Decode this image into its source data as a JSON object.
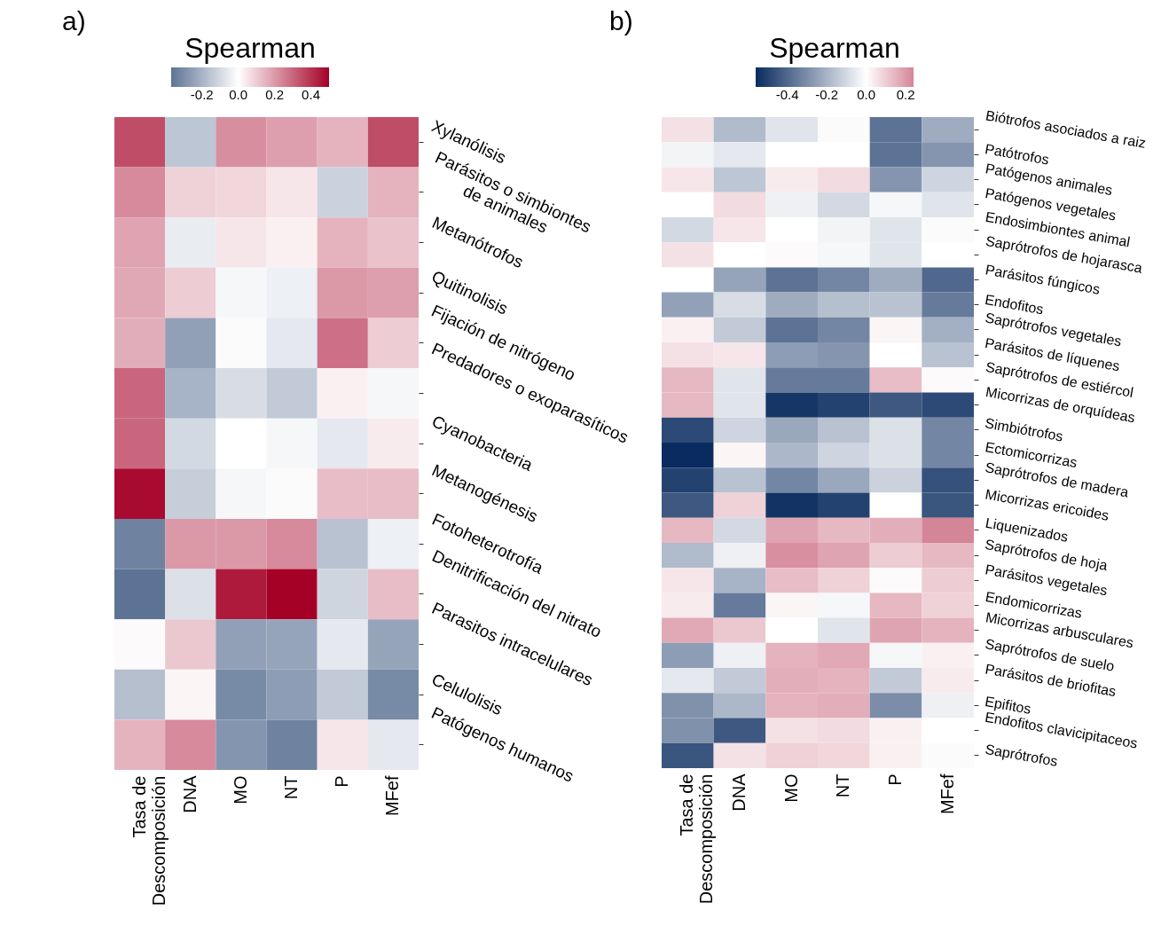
{
  "chart_data": [
    {
      "type": "heatmap",
      "annotations": [
        "a)"
      ],
      "legend_title": "Spearman",
      "clim": [
        0.5,
        -0.37
      ],
      "cticks": [
        0.4,
        0.2,
        {
          "value": 0,
          "label": "0.0"
        },
        -0.2
      ],
      "categories": [
        "Tasa de Descomposición",
        "DNA",
        "MO",
        "NT",
        "P",
        "MFef"
      ],
      "y_categories": [
        "Xylanólisis",
        "Parásitos o simbiontes de animales",
        "Metanótrofos",
        "Quitinolisis",
        "Fijación de nitrógeno",
        "Predadores o exoparasíticos",
        "Cyanobacteria",
        "Metanogénesis",
        "Fotoheterotrofía",
        "Denitrificación del nitrato",
        "Parasitos intracelulares",
        "Celulolisis",
        "Patógenos humanos"
      ],
      "cells": [
        [
          0.35,
          -0.15,
          0.22,
          0.19,
          0.15,
          0.35
        ],
        [
          0.23,
          0.09,
          0.08,
          0.05,
          -0.12,
          0.15
        ],
        [
          0.18,
          -0.05,
          0.05,
          0.03,
          0.15,
          0.12
        ],
        [
          0.17,
          0.1,
          -0.02,
          -0.04,
          0.2,
          0.19
        ],
        [
          0.16,
          -0.25,
          -0.01,
          -0.06,
          0.28,
          0.1
        ],
        [
          0.3,
          -0.2,
          -0.09,
          -0.14,
          0.03,
          -0.02
        ],
        [
          0.3,
          -0.1,
          0,
          -0.02,
          -0.06,
          0.04
        ],
        [
          0.48,
          -0.13,
          -0.02,
          -0.01,
          0.13,
          0.13
        ],
        [
          -0.33,
          0.2,
          0.2,
          0.23,
          -0.16,
          -0.04
        ],
        [
          -0.37,
          -0.08,
          0.45,
          0.5,
          -0.11,
          0.13
        ],
        [
          0.01,
          0.11,
          -0.25,
          -0.24,
          -0.06,
          -0.24
        ],
        [
          -0.17,
          0.02,
          -0.31,
          -0.26,
          -0.14,
          -0.31
        ],
        [
          0.15,
          0.23,
          -0.28,
          -0.33,
          0.05,
          -0.06
        ]
      ]
    },
    {
      "type": "heatmap",
      "annotations": [
        "b)"
      ],
      "legend_title": "Spearman",
      "clim": [
        0.24,
        -0.56
      ],
      "cticks": [
        0.2,
        {
          "value": 0,
          "label": "0.0"
        },
        -0.2,
        -0.4
      ],
      "categories": [
        "Tasa de Descomposición",
        "DNA",
        "MO",
        "NT",
        "P",
        "MFef"
      ],
      "y_categories": [
        "Biótrofos asociados a raiz",
        "Patótrofos",
        "Patógenos animales",
        "Patógenos vegetales",
        "Endosimbiontes animal",
        "Saprótrofos de hojarasca",
        "Parásitos fúngicos",
        "Endofitos",
        "Saprótrofos vegetales",
        "Parásitos de líquenes",
        "Saprótrofos de estiércol",
        "Micorrizas de orquídeas",
        "Simbiótrofos",
        "Ectomicorrizas",
        "Saprótrofos de madera",
        "Micorrizas ericoides",
        "Liquenizados",
        "Saprótrofos de hoja",
        "Parásitos vegetales",
        "Endomicorrizas",
        "Micorrizas arbusculares",
        "Saprótrofos de suelo",
        "Parásitos de briofitas",
        "Epifitos",
        "Endofitos clavicipitaceos",
        "Saprótrofos"
      ],
      "cells": [
        [
          0.06,
          -0.18,
          -0.07,
          -0.01,
          -0.37,
          -0.22
        ],
        [
          -0.03,
          -0.06,
          0,
          0,
          -0.37,
          -0.28
        ],
        [
          0.05,
          -0.15,
          0.04,
          0.07,
          -0.28,
          -0.11
        ],
        [
          0,
          0.07,
          -0.04,
          -0.1,
          -0.02,
          -0.07
        ],
        [
          -0.1,
          0.05,
          0,
          -0.03,
          -0.07,
          -0.01
        ],
        [
          0.06,
          0,
          0.01,
          -0.02,
          -0.07,
          0
        ],
        [
          0,
          -0.24,
          -0.37,
          -0.32,
          -0.22,
          -0.4
        ],
        [
          -0.25,
          -0.09,
          -0.22,
          -0.17,
          -0.16,
          -0.35
        ],
        [
          0.03,
          -0.14,
          -0.37,
          -0.32,
          0.02,
          -0.21
        ],
        [
          0.06,
          0.05,
          -0.26,
          -0.28,
          0,
          -0.16
        ],
        [
          0.14,
          -0.07,
          -0.35,
          -0.35,
          0.13,
          0.01
        ],
        [
          0.14,
          -0.07,
          -0.53,
          -0.5,
          -0.44,
          -0.48
        ],
        [
          -0.48,
          -0.11,
          -0.23,
          -0.16,
          -0.08,
          -0.32
        ],
        [
          -0.56,
          0.02,
          -0.19,
          -0.11,
          -0.08,
          -0.32
        ],
        [
          -0.5,
          -0.16,
          -0.32,
          -0.23,
          -0.12,
          -0.46
        ],
        [
          -0.44,
          0.09,
          -0.54,
          -0.5,
          0,
          -0.45
        ],
        [
          0.14,
          -0.1,
          0.18,
          0.14,
          0.16,
          0.24
        ],
        [
          -0.18,
          -0.04,
          0.22,
          0.18,
          0.1,
          0.14
        ],
        [
          0.05,
          -0.2,
          0.13,
          0.09,
          0.01,
          0.1
        ],
        [
          0.04,
          -0.35,
          0.02,
          -0.02,
          0.14,
          0.09
        ],
        [
          0.17,
          0.11,
          0,
          -0.07,
          0.18,
          0.15
        ],
        [
          -0.26,
          -0.04,
          0.15,
          0.17,
          -0.02,
          0.03
        ],
        [
          -0.06,
          -0.14,
          0.16,
          0.15,
          -0.14,
          0.04
        ],
        [
          -0.29,
          -0.19,
          0.15,
          0.16,
          -0.3,
          -0.04
        ],
        [
          -0.29,
          -0.44,
          0.06,
          0.07,
          0.03,
          0
        ],
        [
          -0.45,
          0.06,
          0.09,
          0.08,
          0.03,
          -0.01
        ]
      ]
    }
  ]
}
